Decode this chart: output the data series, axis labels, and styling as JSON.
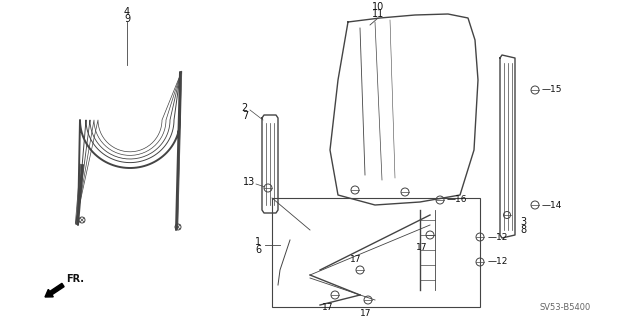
{
  "bg_color": "#ffffff",
  "line_color": "#444444",
  "label_color": "#111111",
  "diagram_code": "SV53-B5400",
  "fr_label": "FR.",
  "fig_width": 6.4,
  "fig_height": 3.19,
  "dpi": 100
}
